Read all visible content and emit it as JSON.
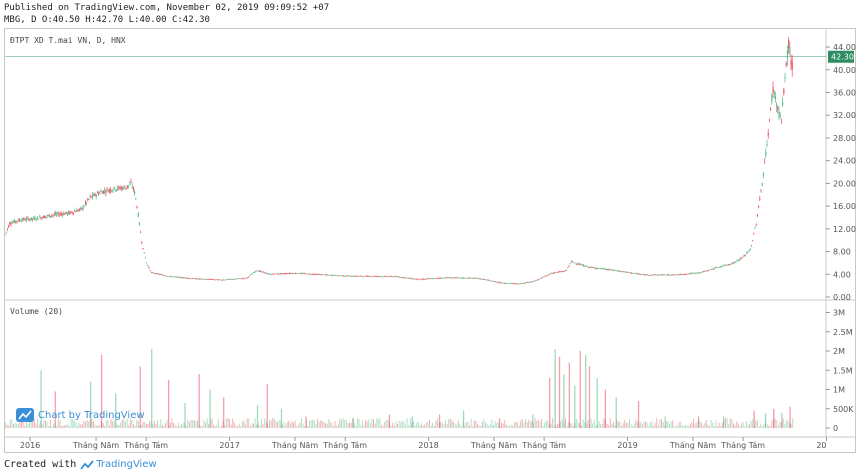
{
  "header": {
    "line1": "Published on TradingView.com, November 02, 2019 09:09:52 +07",
    "line2": "MBG, D O:40.50 H:42.70 L:40.00 C:42.30"
  },
  "footer": {
    "created_with": "Created with",
    "brand": "TradingView"
  },
  "watermark": {
    "label": "Chart by TradingView"
  },
  "colors": {
    "up": "#53b987",
    "down": "#eb4d5c",
    "last_price_bg": "#2e8c63",
    "axis_text": "#555555"
  },
  "chart_data": [
    {
      "type": "candlestick",
      "title": "ĐTPT XD T.mai VN, D, HNX",
      "ylim": [
        0,
        46
      ],
      "y_ticks": [
        "0.00",
        "4.00",
        "8.00",
        "12.00",
        "16.00",
        "20.00",
        "24.00",
        "28.00",
        "32.00",
        "36.00",
        "40.00",
        "44.00"
      ],
      "last_price": "42.30",
      "x_ticks": [
        "2016",
        "Tháng Năm",
        "Tháng Tám",
        "2017",
        "Tháng Năm",
        "Tháng Tám",
        "2018",
        "Tháng Năm",
        "Tháng Tám",
        "2019",
        "Tháng Năm",
        "Tháng Tám",
        "20"
      ],
      "x_range": [
        "2015-11-16",
        "2019-12-31"
      ],
      "series": [
        {
          "values": [
            [
              "2015-11-16",
              11
            ],
            [
              "2015-11-25",
              13
            ],
            [
              "2015-12-15",
              13.6
            ],
            [
              "2016-01-10",
              13.8
            ],
            [
              "2016-02-15",
              14.5
            ],
            [
              "2016-03-15",
              14.8
            ],
            [
              "2016-04-05",
              15.5
            ],
            [
              "2016-04-20",
              17.5
            ],
            [
              "2016-05-10",
              18.5
            ],
            [
              "2016-06-01",
              19
            ],
            [
              "2016-06-25",
              19.3
            ],
            [
              "2016-07-05",
              20
            ],
            [
              "2016-07-12",
              18
            ],
            [
              "2016-07-18",
              14
            ],
            [
              "2016-07-25",
              9
            ],
            [
              "2016-08-02",
              6
            ],
            [
              "2016-08-10",
              4.3
            ],
            [
              "2016-09-15",
              3.6
            ],
            [
              "2016-11-01",
              3.2
            ],
            [
              "2016-12-15",
              3
            ],
            [
              "2017-02-01",
              3.3
            ],
            [
              "2017-02-20",
              4.7
            ],
            [
              "2017-03-15",
              4
            ],
            [
              "2017-05-01",
              4.2
            ],
            [
              "2017-08-01",
              3.7
            ],
            [
              "2017-11-01",
              3.6
            ],
            [
              "2017-12-15",
              3.1
            ],
            [
              "2018-02-01",
              3.4
            ],
            [
              "2018-04-01",
              3.3
            ],
            [
              "2018-05-15",
              2.5
            ],
            [
              "2018-06-15",
              2.3
            ],
            [
              "2018-07-15",
              2.8
            ],
            [
              "2018-08-15",
              4.2
            ],
            [
              "2018-09-10",
              4.6
            ],
            [
              "2018-09-20",
              6.2
            ],
            [
              "2018-10-20",
              5.3
            ],
            [
              "2018-12-15",
              4.6
            ],
            [
              "2019-02-01",
              3.9
            ],
            [
              "2019-04-01",
              3.9
            ],
            [
              "2019-05-15",
              4.3
            ],
            [
              "2019-06-15",
              5.2
            ],
            [
              "2019-07-15",
              6
            ],
            [
              "2019-08-01",
              7
            ],
            [
              "2019-08-15",
              8.5
            ],
            [
              "2019-08-25",
              13
            ],
            [
              "2019-09-05",
              20
            ],
            [
              "2019-09-15",
              28
            ],
            [
              "2019-09-25",
              37
            ],
            [
              "2019-10-01",
              34
            ],
            [
              "2019-10-10",
              31
            ],
            [
              "2019-10-18",
              40
            ],
            [
              "2019-10-24",
              45
            ],
            [
              "2019-10-29",
              40
            ],
            [
              "2019-11-01",
              42.3
            ]
          ]
        }
      ]
    },
    {
      "type": "bar",
      "title": "Volume (20)",
      "ylim": [
        0,
        3100000
      ],
      "y_ticks": [
        "0",
        "500K",
        "1M",
        "1.5M",
        "2M",
        "2.5M",
        "3M"
      ],
      "spikes": [
        [
          "2016-01-20",
          1500000
        ],
        [
          "2016-02-15",
          950000
        ],
        [
          "2016-04-20",
          1200000
        ],
        [
          "2016-05-10",
          1900000
        ],
        [
          "2016-06-05",
          900000
        ],
        [
          "2016-07-20",
          1600000
        ],
        [
          "2016-08-10",
          2050000
        ],
        [
          "2016-09-10",
          1250000
        ],
        [
          "2016-10-10",
          650000
        ],
        [
          "2016-11-05",
          1400000
        ],
        [
          "2016-11-25",
          1000000
        ],
        [
          "2016-12-20",
          800000
        ],
        [
          "2017-02-20",
          600000
        ],
        [
          "2017-03-10",
          1150000
        ],
        [
          "2017-04-05",
          500000
        ],
        [
          "2017-05-20",
          300000
        ],
        [
          "2017-08-15",
          250000
        ],
        [
          "2017-10-20",
          350000
        ],
        [
          "2017-12-01",
          300000
        ],
        [
          "2018-01-20",
          350000
        ],
        [
          "2018-03-05",
          450000
        ],
        [
          "2018-05-10",
          250000
        ],
        [
          "2018-07-10",
          350000
        ],
        [
          "2018-08-10",
          1300000
        ],
        [
          "2018-08-20",
          2050000
        ],
        [
          "2018-08-28",
          1850000
        ],
        [
          "2018-09-05",
          1400000
        ],
        [
          "2018-09-15",
          1700000
        ],
        [
          "2018-09-25",
          1100000
        ],
        [
          "2018-10-05",
          2000000
        ],
        [
          "2018-10-15",
          1900000
        ],
        [
          "2018-10-22",
          1600000
        ],
        [
          "2018-11-05",
          1300000
        ],
        [
          "2018-11-20",
          1000000
        ],
        [
          "2018-12-10",
          800000
        ],
        [
          "2019-01-20",
          700000
        ],
        [
          "2019-03-10",
          300000
        ],
        [
          "2019-05-10",
          300000
        ],
        [
          "2019-06-25",
          300000
        ],
        [
          "2019-08-20",
          450000
        ],
        [
          "2019-09-10",
          380000
        ],
        [
          "2019-09-25",
          500000
        ],
        [
          "2019-10-10",
          400000
        ],
        [
          "2019-10-25",
          550000
        ]
      ]
    }
  ]
}
